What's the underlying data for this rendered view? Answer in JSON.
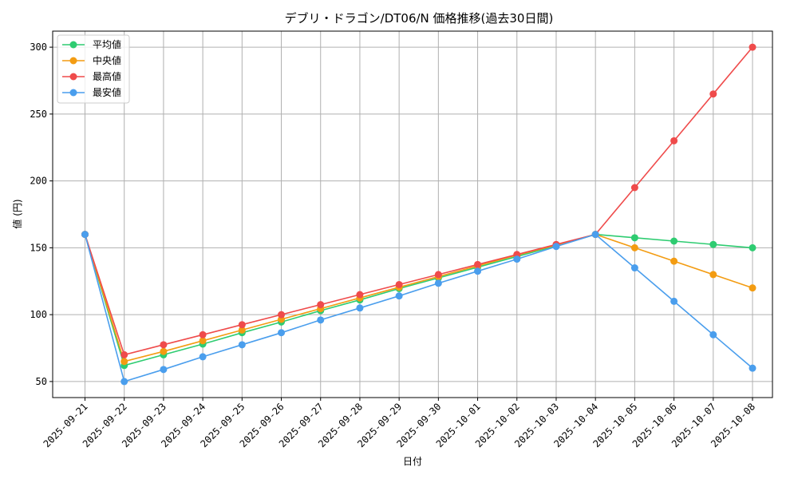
{
  "chart_data": {
    "type": "line",
    "title": "デブリ・ドラゴン/DT06/N 価格推移(過去30日間)",
    "xlabel": "日付",
    "ylabel": "値 (円)",
    "ylim": [
      38,
      312
    ],
    "yticks": [
      50,
      100,
      150,
      200,
      250,
      300
    ],
    "grid": true,
    "legend_position": "top-left",
    "categories": [
      "2025-09-21",
      "2025-09-22",
      "2025-09-23",
      "2025-09-24",
      "2025-09-25",
      "2025-09-26",
      "2025-09-27",
      "2025-09-28",
      "2025-09-29",
      "2025-09-30",
      "2025-10-01",
      "2025-10-02",
      "2025-10-03",
      "2025-10-04",
      "2025-10-05",
      "2025-10-06",
      "2025-10-07",
      "2025-10-08"
    ],
    "series": [
      {
        "name": "平均値",
        "color": "#2ecc71",
        "values": [
          160,
          62,
          70,
          78,
          86.5,
          94.5,
          103,
          111,
          119.5,
          127.5,
          135.5,
          143.5,
          151.5,
          160,
          157.5,
          155,
          152.5,
          150
        ]
      },
      {
        "name": "中央値",
        "color": "#f39c12",
        "values": [
          160,
          65,
          72.5,
          80.5,
          88.5,
          96.5,
          104.5,
          112.5,
          120.5,
          128.5,
          136.5,
          144.5,
          152,
          160,
          150,
          140,
          130,
          120
        ]
      },
      {
        "name": "最高値",
        "color": "#ef4b4b",
        "values": [
          160,
          70,
          77.5,
          85,
          92.5,
          100,
          107.5,
          115,
          122.5,
          130,
          137.5,
          145,
          152.5,
          160,
          195,
          230,
          265,
          300
        ]
      },
      {
        "name": "最安値",
        "color": "#4a9eed",
        "values": [
          160,
          50,
          59,
          68.5,
          77.5,
          86.5,
          96,
          105,
          114,
          123.5,
          132.5,
          141.5,
          151,
          160,
          135,
          110,
          85,
          60
        ]
      }
    ]
  }
}
